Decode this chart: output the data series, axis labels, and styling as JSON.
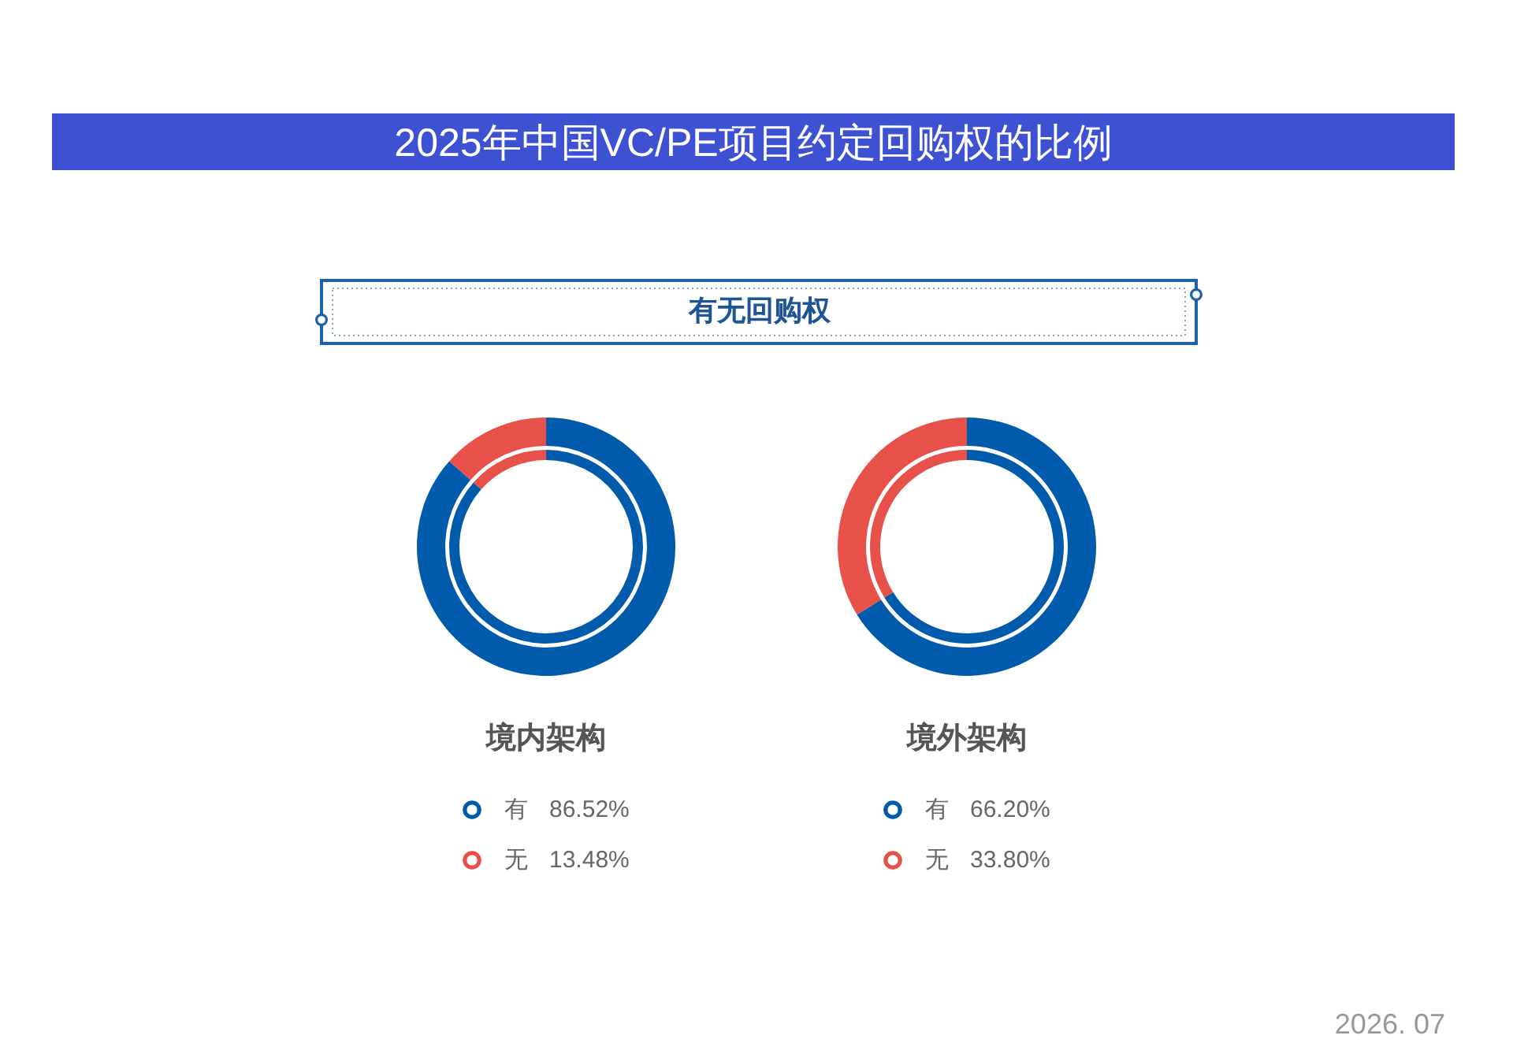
{
  "chart_data": [
    {
      "type": "donut",
      "title": "2025年中国VC/PE项目约定回购权的比例",
      "subtitle": "有无回购权",
      "xlabel": "境内架构",
      "categories": [
        "有",
        "无"
      ],
      "colors": [
        "#005BAC",
        "#E8504A"
      ],
      "series": [
        {
          "values": [
            86.52,
            13.48
          ],
          "value_labels": [
            "86.52%",
            "13.48%"
          ]
        },
        {
          "values": [
            86.52,
            13.48
          ]
        }
      ],
      "legend": "bottom"
    },
    {
      "type": "donut",
      "xlabel": "境外架构",
      "categories": [
        "有",
        "无"
      ],
      "colors": [
        "#005BAC",
        "#E8504A"
      ],
      "series": [
        {
          "values": [
            66.2,
            33.8
          ],
          "value_labels": [
            "66.20%",
            "33.80%"
          ]
        },
        {
          "values": [
            66.2,
            33.8
          ]
        }
      ],
      "legend": "bottom",
      "annotations": [
        "2026. 07"
      ]
    }
  ]
}
